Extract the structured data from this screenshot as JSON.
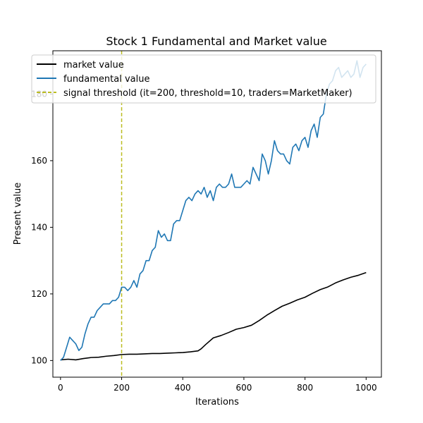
{
  "chart_data": {
    "type": "line",
    "title": "Stock 1 Fundamental and Market value",
    "xlabel": "Iterations",
    "ylabel": "Present value",
    "xlim": [
      -25,
      1050
    ],
    "ylim": [
      95,
      193
    ],
    "x_ticks": [
      0,
      200,
      400,
      600,
      800,
      1000
    ],
    "y_ticks": [
      100,
      120,
      140,
      160,
      180
    ],
    "grid": false,
    "legend_position": "top-left",
    "series": [
      {
        "name": "market value",
        "color": "#000000",
        "x": [
          0,
          25,
          50,
          75,
          100,
          125,
          150,
          175,
          200,
          225,
          250,
          275,
          300,
          325,
          350,
          375,
          400,
          425,
          450,
          460,
          475,
          500,
          525,
          550,
          575,
          600,
          625,
          650,
          675,
          700,
          725,
          750,
          775,
          800,
          825,
          850,
          875,
          900,
          925,
          950,
          975,
          1000
        ],
        "values": [
          100.2,
          100.4,
          100.2,
          100.6,
          100.9,
          101.0,
          101.3,
          101.5,
          101.8,
          101.9,
          101.9,
          102.0,
          102.1,
          102.1,
          102.2,
          102.3,
          102.4,
          102.6,
          102.9,
          103.5,
          104.8,
          106.8,
          107.5,
          108.4,
          109.4,
          109.9,
          110.6,
          112.0,
          113.6,
          115.0,
          116.3,
          117.2,
          118.2,
          119.0,
          120.2,
          121.3,
          122.1,
          123.3,
          124.2,
          125.0,
          125.6,
          126.4
        ]
      },
      {
        "name": "fundamental value",
        "color": "#1f77b4",
        "x": [
          0,
          10,
          20,
          30,
          40,
          50,
          60,
          70,
          80,
          90,
          100,
          110,
          120,
          130,
          140,
          150,
          160,
          170,
          180,
          190,
          200,
          210,
          220,
          230,
          240,
          250,
          260,
          270,
          280,
          290,
          300,
          310,
          320,
          330,
          340,
          350,
          360,
          370,
          380,
          390,
          400,
          410,
          420,
          430,
          440,
          450,
          460,
          470,
          480,
          490,
          500,
          510,
          520,
          530,
          540,
          550,
          560,
          570,
          580,
          590,
          600,
          610,
          620,
          630,
          640,
          650,
          660,
          670,
          680,
          690,
          700,
          710,
          720,
          730,
          740,
          750,
          760,
          770,
          780,
          790,
          800,
          810,
          820,
          830,
          840,
          850,
          860,
          870,
          880,
          890,
          900,
          910,
          920,
          930,
          940,
          950,
          960,
          970,
          980,
          990,
          1000
        ],
        "values": [
          100,
          101,
          104,
          107,
          106,
          105,
          103,
          104,
          108,
          111,
          113,
          113,
          115,
          116,
          117,
          117,
          117,
          118,
          118,
          119,
          122,
          122,
          121,
          122,
          124,
          122,
          126,
          127,
          130,
          130,
          133,
          134,
          139,
          137,
          138,
          136,
          136,
          141,
          142,
          142,
          145,
          148,
          149,
          148,
          150,
          151,
          150,
          152,
          149,
          151,
          148,
          152,
          153,
          152,
          152,
          153,
          156,
          152,
          152,
          152,
          153,
          154,
          153,
          158,
          156,
          154,
          162,
          160,
          156,
          160,
          166,
          163,
          162,
          162,
          160,
          159,
          164,
          165,
          163,
          166,
          167,
          164,
          169,
          171,
          167,
          173,
          174,
          180,
          183,
          184,
          187,
          188,
          185,
          186,
          187,
          185,
          186,
          190,
          185,
          188,
          189
        ]
      }
    ],
    "vlines": [
      {
        "name": "signal threshold (it=200, threshold=10, traders=MarketMaker)",
        "x": 200,
        "color": "#bcbd22"
      }
    ]
  }
}
